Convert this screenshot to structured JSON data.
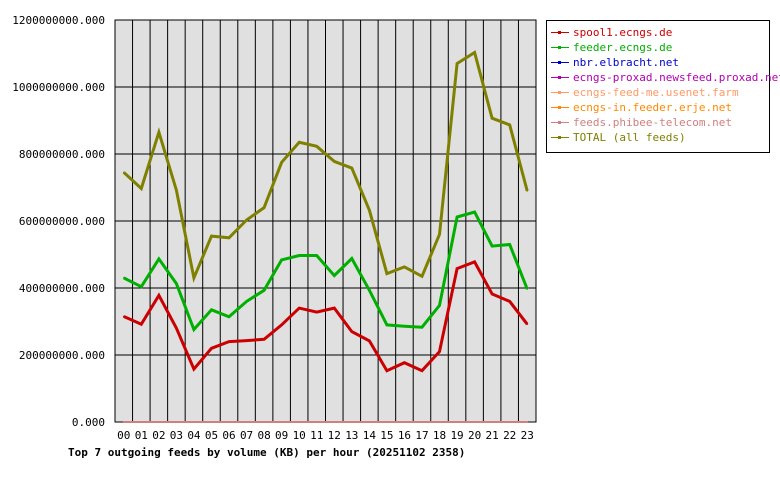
{
  "chart_data": {
    "type": "line",
    "title": "Top 7 outgoing feeds by volume (KB) per hour (20251102 2358)",
    "xlabel": "",
    "ylabel": "",
    "categories": [
      "00",
      "01",
      "02",
      "03",
      "04",
      "05",
      "06",
      "07",
      "08",
      "09",
      "10",
      "11",
      "12",
      "13",
      "14",
      "15",
      "16",
      "17",
      "18",
      "19",
      "20",
      "21",
      "22",
      "23"
    ],
    "ylim": [
      0,
      1200000000
    ],
    "yticks": [
      0,
      200000000,
      400000000,
      600000000,
      800000000,
      1000000000,
      1200000000
    ],
    "ytick_labels": [
      "0.000",
      "200000000.000",
      "400000000.000",
      "600000000.000",
      "800000000.000",
      "1000000000.000",
      "1200000000.000"
    ],
    "grid": true,
    "legend_position": "right",
    "series": [
      {
        "name": "spool1.ecngs.de",
        "color": "#cc0000",
        "values": [
          315000000,
          292000000,
          378000000,
          280000000,
          158000000,
          220000000,
          240000000,
          243000000,
          247000000,
          290000000,
          340000000,
          328000000,
          340000000,
          270000000,
          242000000,
          153000000,
          177000000,
          153000000,
          210000000,
          458000000,
          478000000,
          382000000,
          360000000,
          292000000
        ]
      },
      {
        "name": "feeder.ecngs.de",
        "color": "#00b000",
        "values": [
          430000000,
          404000000,
          487000000,
          413000000,
          276000000,
          335000000,
          314000000,
          360000000,
          393000000,
          484000000,
          497000000,
          497000000,
          437000000,
          488000000,
          393000000,
          290000000,
          286000000,
          283000000,
          348000000,
          612000000,
          627000000,
          525000000,
          530000000,
          397000000
        ]
      },
      {
        "name": "nbr.elbracht.net",
        "color": "#0000cc",
        "values": [
          0,
          0,
          0,
          0,
          0,
          0,
          0,
          0,
          0,
          0,
          0,
          0,
          0,
          0,
          0,
          0,
          0,
          0,
          0,
          0,
          0,
          0,
          0,
          0
        ]
      },
      {
        "name": "ecngs-proxad.newsfeed.proxad.net",
        "color": "#b000b0",
        "values": [
          0,
          0,
          0,
          0,
          0,
          0,
          0,
          0,
          0,
          0,
          0,
          0,
          0,
          0,
          0,
          0,
          0,
          0,
          0,
          0,
          0,
          0,
          0,
          0
        ]
      },
      {
        "name": "ecngs-feed-me.usenet.farm",
        "color": "#ff9966",
        "values": [
          0,
          0,
          0,
          0,
          0,
          0,
          0,
          0,
          0,
          0,
          0,
          0,
          0,
          0,
          0,
          0,
          0,
          0,
          0,
          0,
          0,
          0,
          0,
          0
        ]
      },
      {
        "name": "ecngs-in.feeder.erje.net",
        "color": "#ff8800",
        "values": [
          0,
          0,
          0,
          0,
          0,
          0,
          0,
          0,
          0,
          0,
          0,
          0,
          0,
          0,
          0,
          0,
          0,
          0,
          0,
          0,
          0,
          0,
          0,
          0
        ]
      },
      {
        "name": "feeds.phibee-telecom.net",
        "color": "#d08080",
        "values": [
          0,
          0,
          0,
          0,
          0,
          0,
          0,
          0,
          0,
          0,
          0,
          0,
          0,
          0,
          0,
          0,
          0,
          0,
          0,
          0,
          0,
          0,
          0,
          0
        ]
      },
      {
        "name": "TOTAL (all feeds)",
        "color": "#808000",
        "values": [
          745000000,
          697000000,
          865000000,
          692000000,
          430000000,
          555000000,
          550000000,
          603000000,
          640000000,
          775000000,
          835000000,
          823000000,
          778000000,
          758000000,
          632000000,
          443000000,
          463000000,
          435000000,
          560000000,
          1070000000,
          1103000000,
          907000000,
          887000000,
          690000000
        ]
      }
    ]
  }
}
